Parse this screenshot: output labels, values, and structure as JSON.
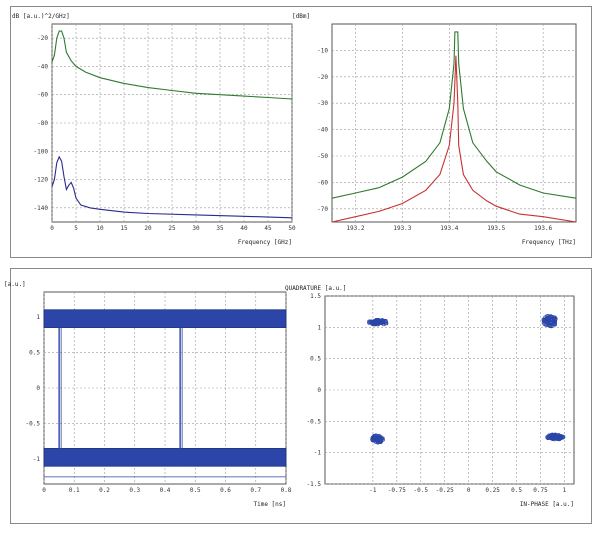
{
  "chart_data": [
    {
      "type": "line",
      "ylabel": "dB [a.u.)^2/GHz]",
      "xlabel": "Frequency [GHz]",
      "xlim": [
        0,
        50
      ],
      "ylim": [
        -150,
        -10
      ],
      "x_ticks": [
        0,
        5,
        10,
        15,
        20,
        25,
        30,
        35,
        40,
        45,
        50
      ],
      "y_ticks": [
        -20,
        -40,
        -60,
        -80,
        -100,
        -120,
        -140
      ],
      "grid": true,
      "series": [
        {
          "color": "#2f7a2f",
          "x": [
            0,
            0.5,
            1.0,
            1.5,
            2.0,
            2.5,
            3,
            4,
            5,
            7,
            10,
            15,
            20,
            25,
            30,
            35,
            40,
            45,
            50
          ],
          "y": [
            -37,
            -32,
            -20,
            -15,
            -15,
            -20,
            -30,
            -36,
            -40,
            -44,
            -48,
            -52,
            -55,
            -57,
            -59,
            -60,
            -61,
            -62,
            -63
          ]
        },
        {
          "color": "#2a2a8f",
          "x": [
            0,
            0.5,
            1.0,
            1.5,
            2.0,
            2.5,
            3,
            3.5,
            4,
            4.5,
            5,
            6,
            8,
            10,
            15,
            20,
            30,
            40,
            50
          ],
          "y": [
            -125,
            -120,
            -108,
            -104,
            -107,
            -118,
            -127,
            -124,
            -122,
            -126,
            -133,
            -138,
            -140,
            -141,
            -143,
            -144,
            -145,
            -146,
            -147
          ]
        }
      ]
    },
    {
      "type": "line",
      "ylabel": "[dBm]",
      "xlabel": "Frequency [THz]",
      "xlim": [
        193.15,
        193.67
      ],
      "ylim": [
        -75,
        0
      ],
      "x_ticks": [
        193.2,
        193.3,
        193.4,
        193.5,
        193.6
      ],
      "y_ticks": [
        -10,
        -20,
        -30,
        -40,
        -50,
        -60,
        -70
      ],
      "grid": true,
      "series": [
        {
          "color": "#2f7a2f",
          "x": [
            193.15,
            193.2,
            193.25,
            193.3,
            193.35,
            193.38,
            193.4,
            193.41,
            193.412,
            193.414,
            193.416,
            193.418,
            193.42,
            193.43,
            193.45,
            193.48,
            193.5,
            193.55,
            193.6,
            193.67
          ],
          "y": [
            -66,
            -64,
            -62,
            -58,
            -52,
            -45,
            -32,
            -15,
            -3,
            -3,
            -3,
            -3,
            -15,
            -32,
            -45,
            -52,
            -56,
            -61,
            -64,
            -66
          ]
        },
        {
          "color": "#c83232",
          "x": [
            193.15,
            193.2,
            193.25,
            193.3,
            193.35,
            193.38,
            193.4,
            193.41,
            193.414,
            193.418,
            193.42,
            193.43,
            193.45,
            193.48,
            193.5,
            193.55,
            193.6,
            193.67
          ],
          "y": [
            -75,
            -73,
            -71,
            -68,
            -63,
            -57,
            -46,
            -30,
            -12,
            -30,
            -46,
            -57,
            -63,
            -67,
            -69,
            -72,
            -73,
            -75
          ]
        }
      ]
    },
    {
      "type": "line",
      "ylabel": "[a.u.]",
      "xlabel": "Time [ns]",
      "xlim": [
        0,
        0.8
      ],
      "ylim": [
        -1.35,
        1.35
      ],
      "x_ticks": [
        0,
        0.1,
        0.2,
        0.3,
        0.4,
        0.5,
        0.6,
        0.7,
        0.8
      ],
      "y_ticks": [
        1,
        0.5,
        0,
        -0.5,
        -1
      ],
      "grid": true,
      "bands": [
        {
          "y_top": 1.1,
          "y_bottom": 0.85
        },
        {
          "y_top": -0.85,
          "y_bottom": -1.1
        }
      ],
      "transitions_x": [
        0.05,
        0.45
      ],
      "color": "#2b46a8"
    },
    {
      "type": "scatter",
      "ylabel": "QUADRATURE [a.u.]",
      "xlabel": "IN-PHASE [a.u.]",
      "xlim": [
        -1.5,
        1.1
      ],
      "ylim": [
        -1.5,
        1.5
      ],
      "x_ticks": [
        -1,
        -0.75,
        -0.5,
        -0.25,
        0,
        0.25,
        0.5,
        0.75,
        1
      ],
      "y_ticks": [
        1.5,
        1,
        0.5,
        0,
        -0.5,
        -1,
        -1.5
      ],
      "grid": true,
      "color": "#2b46a8",
      "clusters": [
        {
          "cx": -0.95,
          "cy": 1.08,
          "spread_x": 0.1,
          "spread_y": 0.04
        },
        {
          "cx": 0.85,
          "cy": 1.1,
          "spread_x": 0.07,
          "spread_y": 0.09
        },
        {
          "cx": -0.95,
          "cy": -0.78,
          "spread_x": 0.06,
          "spread_y": 0.06
        },
        {
          "cx": 0.9,
          "cy": -0.75,
          "spread_x": 0.09,
          "spread_y": 0.04
        }
      ]
    }
  ]
}
